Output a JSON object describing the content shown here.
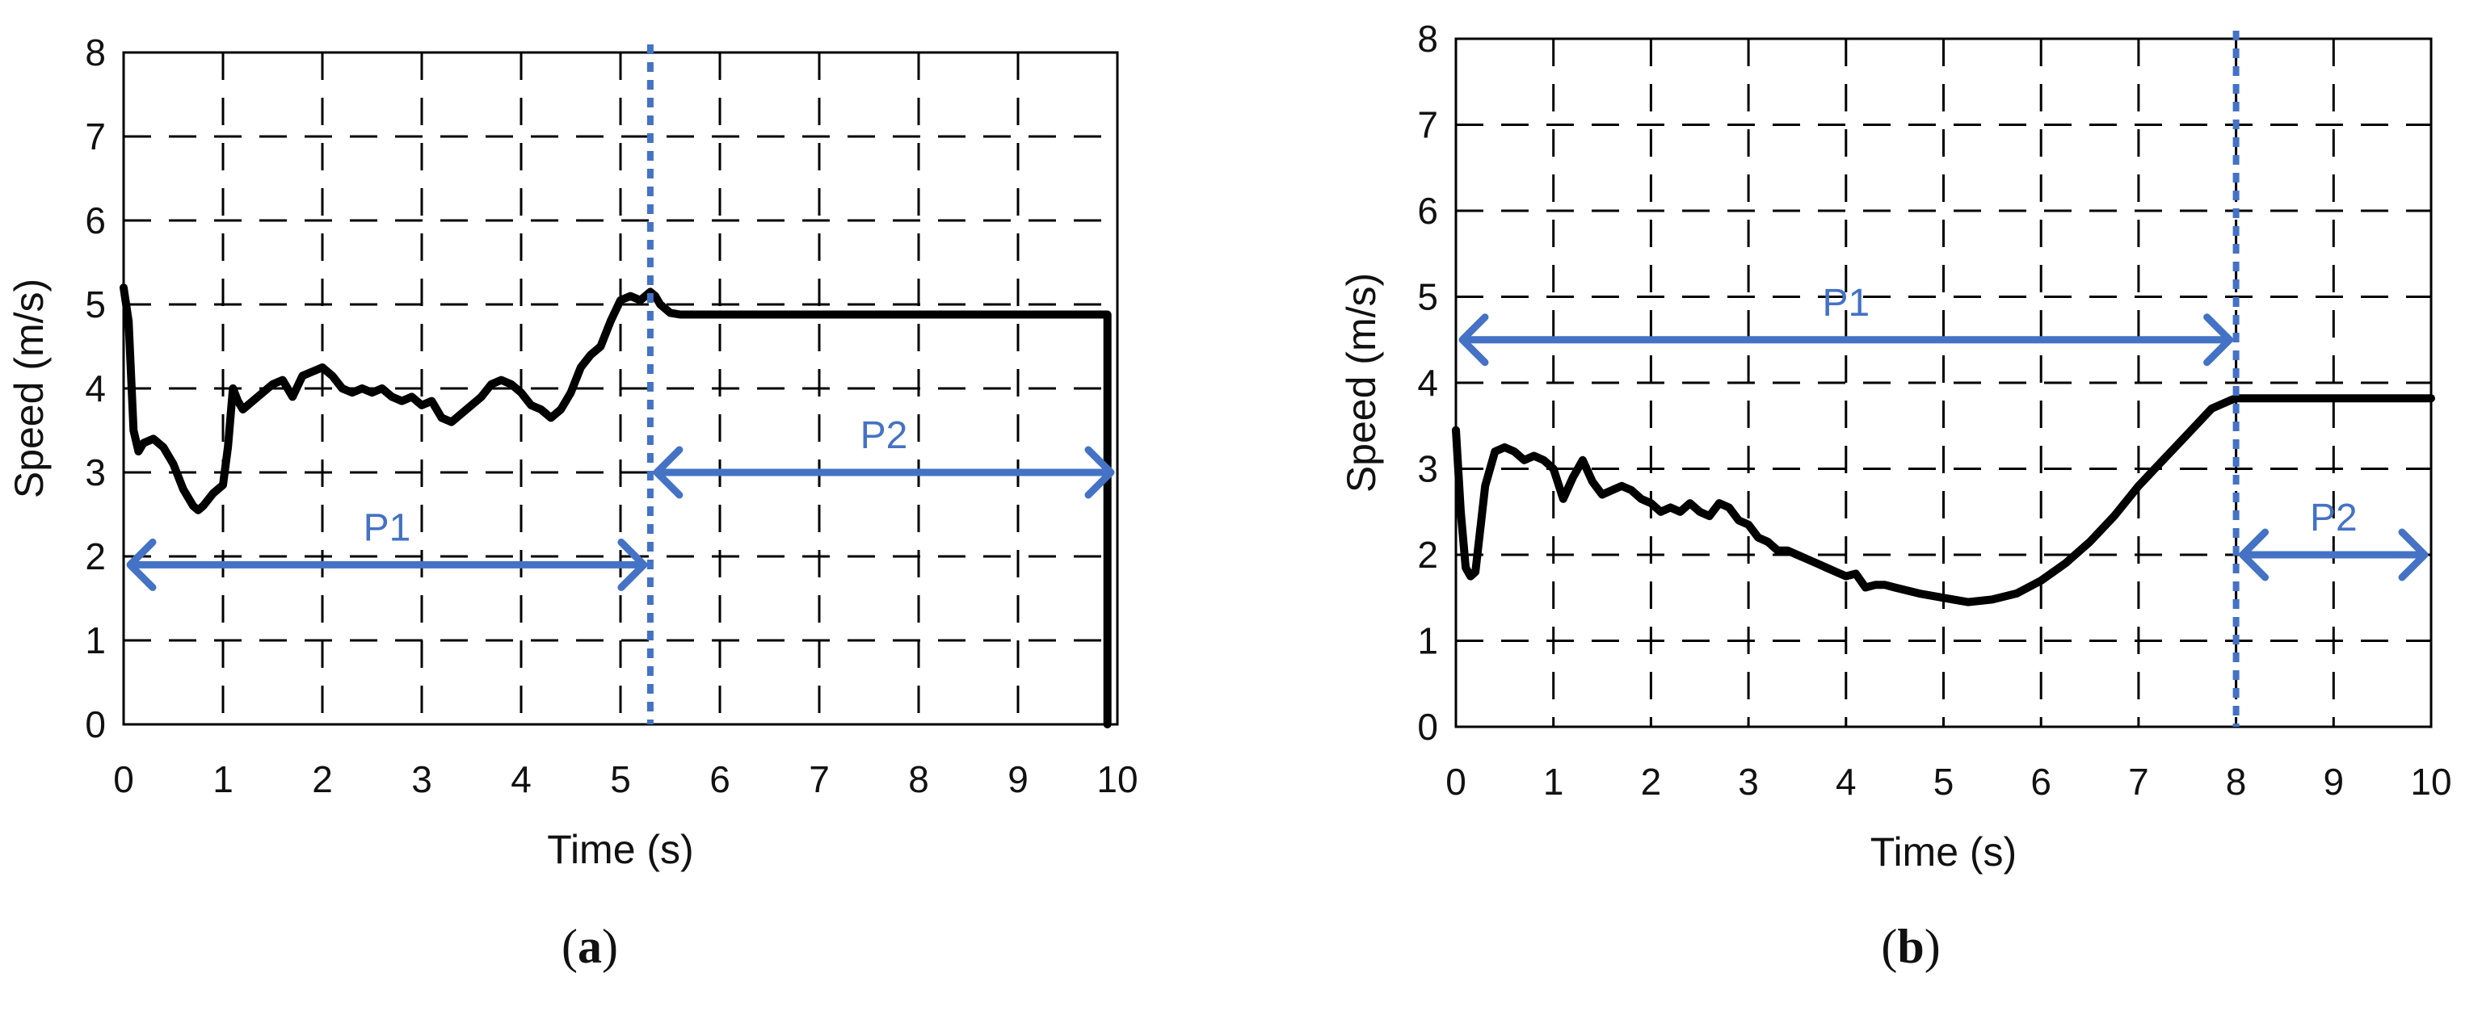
{
  "figure": {
    "subfigures": [
      {
        "paren_open": "(",
        "label": "a",
        "paren_close": ")"
      },
      {
        "paren_open": "(",
        "label": "b",
        "paren_close": ")"
      }
    ]
  },
  "colors": {
    "series": "#000000",
    "annotation": "#4472c4",
    "grid": "#000000"
  },
  "chart_data": [
    {
      "type": "line",
      "title": "",
      "xlabel": "Time (s)",
      "ylabel": "Speed (m/s)",
      "xlim": [
        0,
        10
      ],
      "ylim": [
        0,
        8
      ],
      "xticks": [
        "0",
        "1",
        "2",
        "3",
        "4",
        "5",
        "6",
        "7",
        "8",
        "9",
        "10"
      ],
      "yticks": [
        "0",
        "1",
        "2",
        "3",
        "4",
        "5",
        "6",
        "7",
        "8"
      ],
      "grid": true,
      "series": [
        {
          "x": [
            0,
            0.05,
            0.1,
            0.15,
            0.2,
            0.3,
            0.4,
            0.5,
            0.6,
            0.7,
            0.75,
            0.8,
            0.9,
            1.0,
            1.05,
            1.1,
            1.15,
            1.2,
            1.3,
            1.4,
            1.5,
            1.6,
            1.7,
            1.8,
            1.9,
            2.0,
            2.1,
            2.2,
            2.3,
            2.4,
            2.5,
            2.6,
            2.7,
            2.8,
            2.9,
            3.0,
            3.1,
            3.2,
            3.3,
            3.4,
            3.5,
            3.6,
            3.7,
            3.8,
            3.9,
            4.0,
            4.1,
            4.2,
            4.3,
            4.4,
            4.5,
            4.6,
            4.7,
            4.8,
            4.9,
            5.0,
            5.1,
            5.2,
            5.3,
            5.35,
            5.4,
            5.5,
            5.6,
            6.0,
            7.0,
            8.0,
            9.0,
            9.9,
            9.9
          ],
          "y": [
            5.2,
            4.8,
            3.5,
            3.25,
            3.35,
            3.4,
            3.3,
            3.1,
            2.8,
            2.6,
            2.55,
            2.6,
            2.75,
            2.85,
            3.3,
            4.0,
            3.85,
            3.75,
            3.85,
            3.95,
            4.05,
            4.1,
            3.9,
            4.15,
            4.2,
            4.25,
            4.15,
            4.0,
            3.95,
            4.0,
            3.95,
            4.0,
            3.9,
            3.85,
            3.9,
            3.8,
            3.85,
            3.65,
            3.6,
            3.7,
            3.8,
            3.9,
            4.05,
            4.1,
            4.05,
            3.95,
            3.8,
            3.75,
            3.65,
            3.75,
            3.95,
            4.25,
            4.4,
            4.5,
            4.8,
            5.05,
            5.1,
            5.05,
            5.15,
            5.1,
            5.0,
            4.9,
            4.88,
            4.88,
            4.88,
            4.88,
            4.88,
            4.88,
            0
          ]
        }
      ],
      "annotations": [
        {
          "type": "vline",
          "x": 5.3
        },
        {
          "type": "double-arrow",
          "label": "P1",
          "x1": 0,
          "x2": 5.3,
          "y": 1.9
        },
        {
          "type": "double-arrow",
          "label": "P2",
          "x1": 5.3,
          "x2": 10,
          "y": 3.0
        }
      ]
    },
    {
      "type": "line",
      "title": "",
      "xlabel": "Time (s)",
      "ylabel": "Speed (m/s)",
      "xlim": [
        0,
        10
      ],
      "ylim": [
        0,
        8
      ],
      "xticks": [
        "0",
        "1",
        "2",
        "3",
        "4",
        "5",
        "6",
        "7",
        "8",
        "9",
        "10"
      ],
      "yticks": [
        "0",
        "1",
        "2",
        "3",
        "4",
        "5",
        "6",
        "7",
        "8"
      ],
      "grid": true,
      "series": [
        {
          "x": [
            0,
            0.05,
            0.1,
            0.15,
            0.2,
            0.25,
            0.3,
            0.4,
            0.5,
            0.6,
            0.7,
            0.8,
            0.9,
            1.0,
            1.1,
            1.2,
            1.3,
            1.4,
            1.5,
            1.6,
            1.7,
            1.8,
            1.9,
            2.0,
            2.1,
            2.2,
            2.3,
            2.4,
            2.5,
            2.6,
            2.7,
            2.8,
            2.9,
            3.0,
            3.1,
            3.2,
            3.3,
            3.4,
            3.5,
            3.6,
            3.7,
            3.8,
            3.9,
            4.0,
            4.1,
            4.2,
            4.3,
            4.4,
            4.5,
            4.75,
            5.0,
            5.25,
            5.5,
            5.75,
            6.0,
            6.25,
            6.5,
            6.75,
            7.0,
            7.25,
            7.5,
            7.75,
            7.95,
            8.0,
            8.5,
            9.0,
            9.5,
            10.0
          ],
          "y": [
            3.45,
            2.5,
            1.85,
            1.75,
            1.8,
            2.3,
            2.8,
            3.2,
            3.25,
            3.2,
            3.1,
            3.15,
            3.1,
            3.0,
            2.65,
            2.9,
            3.1,
            2.85,
            2.7,
            2.75,
            2.8,
            2.75,
            2.65,
            2.6,
            2.5,
            2.55,
            2.5,
            2.6,
            2.5,
            2.45,
            2.6,
            2.55,
            2.4,
            2.35,
            2.2,
            2.15,
            2.05,
            2.05,
            2.0,
            1.95,
            1.9,
            1.85,
            1.8,
            1.75,
            1.78,
            1.62,
            1.65,
            1.65,
            1.62,
            1.55,
            1.5,
            1.45,
            1.48,
            1.55,
            1.7,
            1.9,
            2.15,
            2.45,
            2.8,
            3.1,
            3.4,
            3.7,
            3.8,
            3.82,
            3.82,
            3.82,
            3.82,
            3.82
          ]
        }
      ],
      "annotations": [
        {
          "type": "vline",
          "x": 8.0
        },
        {
          "type": "double-arrow",
          "label": "P1",
          "x1": 0,
          "x2": 8.0,
          "y": 4.5
        },
        {
          "type": "double-arrow",
          "label": "P2",
          "x1": 8.0,
          "x2": 10,
          "y": 2.0
        }
      ]
    }
  ]
}
